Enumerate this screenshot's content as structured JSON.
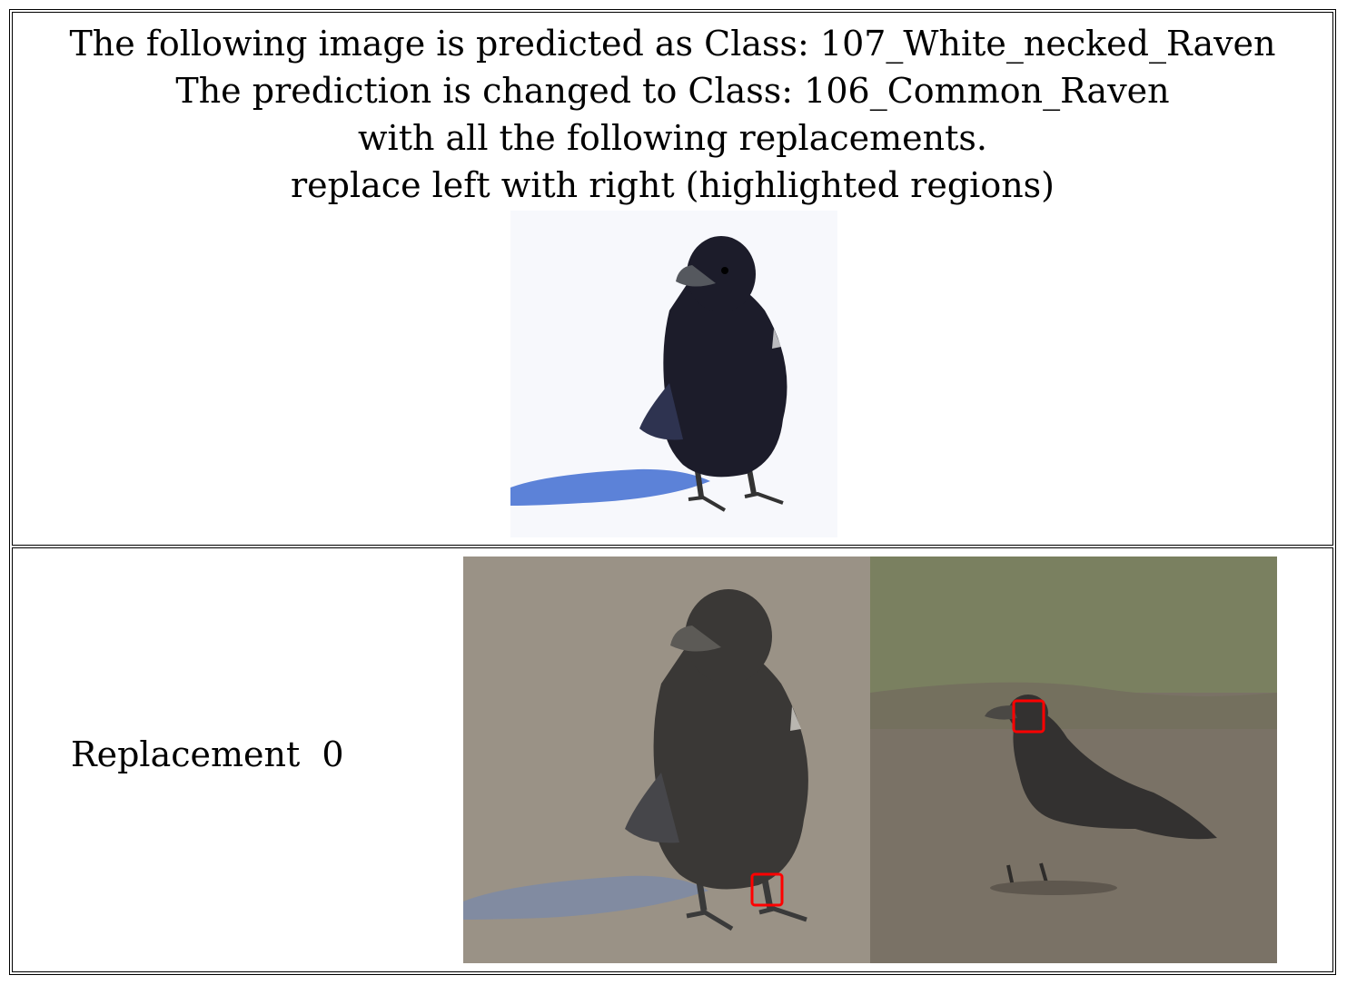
{
  "header": {
    "lines": [
      "The following image is predicted as Class: 107_White_necked_Raven",
      "The prediction is changed to Class: 106_Common_Raven",
      "with all the following replacements.",
      "replace left with right (highlighted regions)"
    ]
  },
  "replacements": [
    {
      "label": "Replacement  0"
    }
  ],
  "colors": {
    "highlight": "#ff0000",
    "border": "#000000",
    "raven": "#1c1c2a",
    "shadow": "#4a74d4"
  }
}
